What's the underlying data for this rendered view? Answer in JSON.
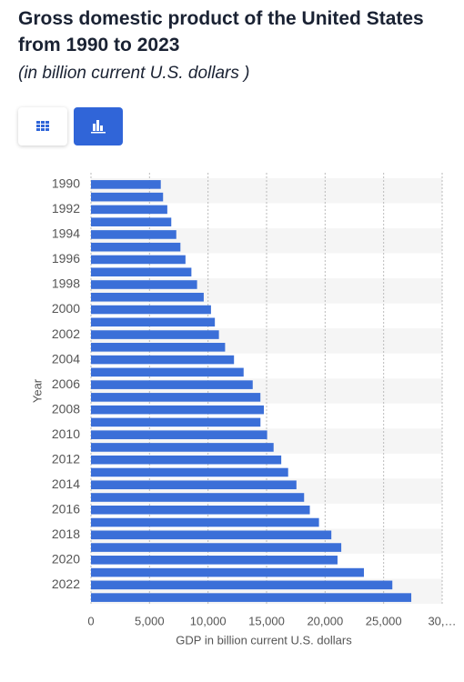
{
  "header": {
    "title": "Gross domestic product of the United States from 1990 to 2023",
    "subtitle": "(in billion current U.S. dollars )"
  },
  "chart_data": {
    "type": "barh",
    "categories": [
      "1990",
      null,
      "1992",
      null,
      "1994",
      null,
      "1996",
      null,
      "1998",
      null,
      "2000",
      null,
      "2002",
      null,
      "2004",
      null,
      "2006",
      null,
      "2008",
      null,
      "2010",
      null,
      "2012",
      null,
      "2014",
      null,
      "2016",
      null,
      "2018",
      null,
      "2020",
      null,
      "2022",
      null
    ],
    "values": [
      5963,
      6158,
      6520,
      6859,
      7287,
      7640,
      8073,
      8578,
      9063,
      9631,
      10251,
      10582,
      10929,
      11457,
      12217,
      13039,
      13816,
      14474,
      14770,
      14478,
      15049,
      15600,
      16254,
      16843,
      17551,
      18206,
      18695,
      19477,
      20533,
      21381,
      21060,
      23315,
      25744,
      27361
    ],
    "color": "#3b6fd8",
    "xlim": [
      0,
      30000
    ],
    "xticks": [
      0,
      {
        "value": 5000,
        "label": "5,000"
      },
      {
        "value": 10000,
        "label": "10,000"
      },
      {
        "value": 15000,
        "label": "15,000"
      },
      {
        "value": 20000,
        "label": "20,000"
      },
      {
        "value": 25000,
        "label": "25,000"
      },
      {
        "value": 30000,
        "label": "30,…"
      }
    ],
    "grid": true,
    "xlabel": "GDP in billion current U.S. dollars",
    "ylabel": "Year"
  }
}
